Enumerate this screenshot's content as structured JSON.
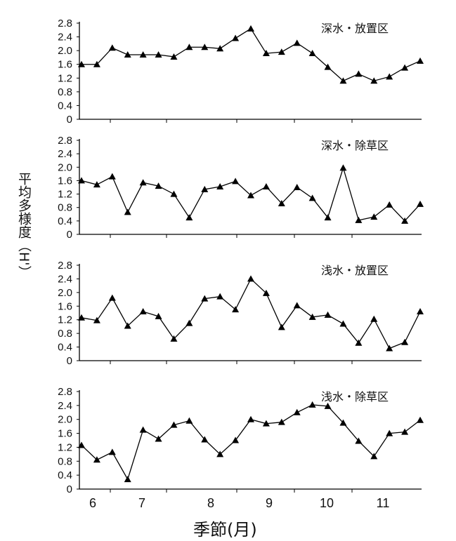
{
  "chart_data": [
    {
      "type": "line",
      "title": "深水・放置区",
      "ylim": [
        0,
        2.8
      ],
      "yticks": [
        "0",
        "0.4",
        "0.8",
        "1.2",
        "1.6",
        "2.0",
        "2.4",
        "2.8"
      ],
      "marker": "triangle",
      "color": "#000000",
      "values": [
        1.6,
        1.6,
        2.08,
        1.88,
        1.88,
        1.88,
        1.82,
        2.1,
        2.1,
        2.06,
        2.36,
        2.64,
        1.92,
        1.96,
        2.22,
        1.92,
        1.52,
        1.12,
        1.32,
        1.12,
        1.24,
        1.5,
        1.7
      ]
    },
    {
      "type": "line",
      "title": "深水・除草区",
      "ylim": [
        0,
        2.8
      ],
      "yticks": [
        "0",
        "0.4",
        "0.8",
        "1.2",
        "1.6",
        "2.0",
        "2.4",
        "2.8"
      ],
      "marker": "triangle",
      "color": "#000000",
      "values": [
        1.6,
        1.48,
        1.72,
        0.66,
        1.54,
        1.44,
        1.2,
        0.5,
        1.34,
        1.42,
        1.58,
        1.16,
        1.42,
        0.92,
        1.4,
        1.08,
        0.5,
        1.98,
        0.42,
        0.52,
        0.88,
        0.4,
        0.9
      ]
    },
    {
      "type": "line",
      "title": "浅水・放置区",
      "ylim": [
        0,
        2.8
      ],
      "yticks": [
        "0",
        "0.4",
        "0.8",
        "1.2",
        "1.6",
        "2.0",
        "2.4",
        "2.8"
      ],
      "marker": "triangle",
      "color": "#000000",
      "values": [
        1.26,
        1.18,
        1.84,
        1.02,
        1.44,
        1.3,
        0.64,
        1.1,
        1.82,
        1.88,
        1.5,
        2.4,
        1.98,
        0.98,
        1.62,
        1.28,
        1.34,
        1.08,
        0.52,
        1.22,
        0.36,
        0.54,
        1.44
      ]
    },
    {
      "type": "line",
      "title": "浅水・除草区",
      "ylim": [
        0,
        2.8
      ],
      "yticks": [
        "0",
        "0.4",
        "0.8",
        "1.2",
        "1.6",
        "2.0",
        "2.4",
        "2.8"
      ],
      "marker": "triangle",
      "color": "#000000",
      "values": [
        1.26,
        0.84,
        1.06,
        0.28,
        1.7,
        1.44,
        1.84,
        1.96,
        1.42,
        1.0,
        1.4,
        2.0,
        1.88,
        1.92,
        2.2,
        2.42,
        2.38,
        1.9,
        1.38,
        0.94,
        1.6,
        1.64,
        1.98
      ]
    }
  ],
  "x_tick_labels": [
    "6",
    "7",
    "8",
    "9",
    "10",
    "11"
  ],
  "ylabel": "平均多様度（H'）",
  "xlabel": "季節(月)"
}
